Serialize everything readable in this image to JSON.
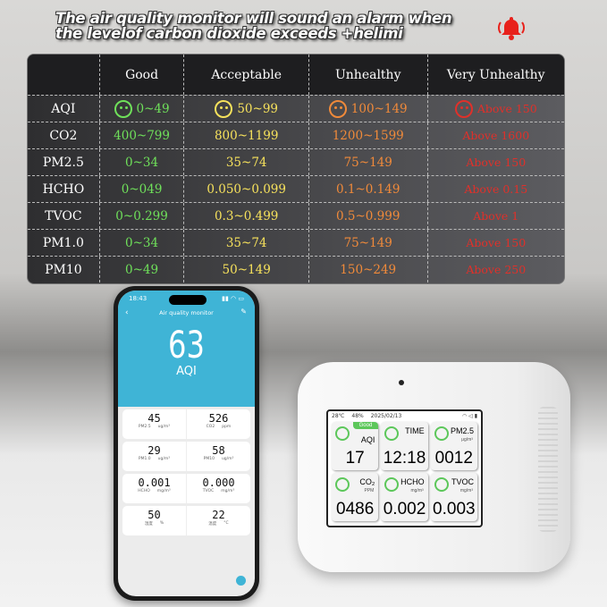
{
  "headline": {
    "line1": "The air quality monitor will sound an alarm when",
    "line2": "the levelof carbon dioxide exceeds +helimi",
    "alarm_icon": "bell-alarm-icon",
    "alarm_color": "#e8211b"
  },
  "table": {
    "headers": [
      "",
      "Good",
      "Acceptable",
      "Unhealthy",
      "Very Unhealthy"
    ],
    "colors": {
      "good": "#6fe05a",
      "acceptable": "#f7e25c",
      "unhealthy": "#f08a3a",
      "very_unhealthy": "#e0302a"
    },
    "rows": [
      {
        "label": "AQI",
        "good": "0~49",
        "acceptable": "50~99",
        "unhealthy": "100~149",
        "very_unhealthy": "Above 150"
      },
      {
        "label": "CO2",
        "good": "400~799",
        "acceptable": "800~1199",
        "unhealthy": "1200~1599",
        "very_unhealthy": "Above 1600"
      },
      {
        "label": "PM2.5",
        "good": "0~34",
        "acceptable": "35~74",
        "unhealthy": "75~149",
        "very_unhealthy": "Above 150"
      },
      {
        "label": "HCHO",
        "good": "0~049",
        "acceptable": "0.050~0.099",
        "unhealthy": "0.1~0.149",
        "very_unhealthy": "Above 0.15"
      },
      {
        "label": "TVOC",
        "good": "0~0.299",
        "acceptable": "0.3~0.499",
        "unhealthy": "0.5~0.999",
        "very_unhealthy": "Above 1"
      },
      {
        "label": "PM1.0",
        "good": "0~34",
        "acceptable": "35~74",
        "unhealthy": "75~149",
        "very_unhealthy": "Above 150"
      },
      {
        "label": "PM10",
        "good": "0~49",
        "acceptable": "50~149",
        "unhealthy": "150~249",
        "very_unhealthy": "Above 250"
      }
    ]
  },
  "phone": {
    "time": "18:43",
    "title": "Air quality monitor",
    "aqi_value": "63",
    "aqi_label": "AQI",
    "cards": [
      [
        {
          "value": "45",
          "label": "PM2.5",
          "unit": "ug/m³"
        },
        {
          "value": "526",
          "label": "CO2",
          "unit": "ppm"
        }
      ],
      [
        {
          "value": "29",
          "label": "PM1.0",
          "unit": "ug/m³"
        },
        {
          "value": "58",
          "label": "PM10",
          "unit": "ug/m³"
        }
      ],
      [
        {
          "value": "0.001",
          "label": "HCHO",
          "unit": "mg/m³"
        },
        {
          "value": "0.000",
          "label": "TVOC",
          "unit": "mg/m³"
        }
      ],
      [
        {
          "value": "50",
          "label": "湿度",
          "unit": "%"
        },
        {
          "value": "22",
          "label": "温度",
          "unit": "°C"
        }
      ]
    ]
  },
  "device": {
    "temp": "28℃",
    "humidity": "48%",
    "date": "2025/02/13",
    "tiles": [
      {
        "name": "AQI",
        "unit": "",
        "value": "17",
        "badge": "Good"
      },
      {
        "name": "TIME",
        "unit": "",
        "value": "12:18"
      },
      {
        "name": "PM2.5",
        "unit": "μg/m³",
        "value": "0012"
      },
      {
        "name": "CO₂",
        "unit": "PPM",
        "value": "0486"
      },
      {
        "name": "HCHO",
        "unit": "mg/m³",
        "value": "0.002"
      },
      {
        "name": "TVOC",
        "unit": "mg/m³",
        "value": "0.003"
      }
    ]
  }
}
